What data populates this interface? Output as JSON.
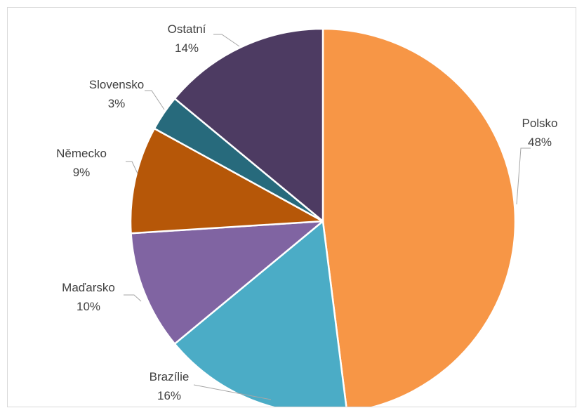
{
  "chart_data": {
    "type": "pie",
    "title": "",
    "series": [
      {
        "name": "",
        "slices": [
          {
            "label": "Polsko",
            "value": 48,
            "value_label": "48%",
            "color": "#F79646"
          },
          {
            "label": "Brazílie",
            "value": 16,
            "value_label": "16%",
            "color": "#4BACC6"
          },
          {
            "label": "Maďarsko",
            "value": 10,
            "value_label": "10%",
            "color": "#8064A2"
          },
          {
            "label": "Německo",
            "value": 9,
            "value_label": "9%",
            "color": "#B65708"
          },
          {
            "label": "Slovensko",
            "value": 3,
            "value_label": "3%",
            "color": "#276A7C"
          },
          {
            "label": "Ostatní",
            "value": 14,
            "value_label": "14%",
            "color": "#4D3B62"
          }
        ]
      }
    ],
    "start_angle": "12 o'clock, clockwise",
    "legend": "none",
    "data_labels": "outside with leader lines"
  }
}
